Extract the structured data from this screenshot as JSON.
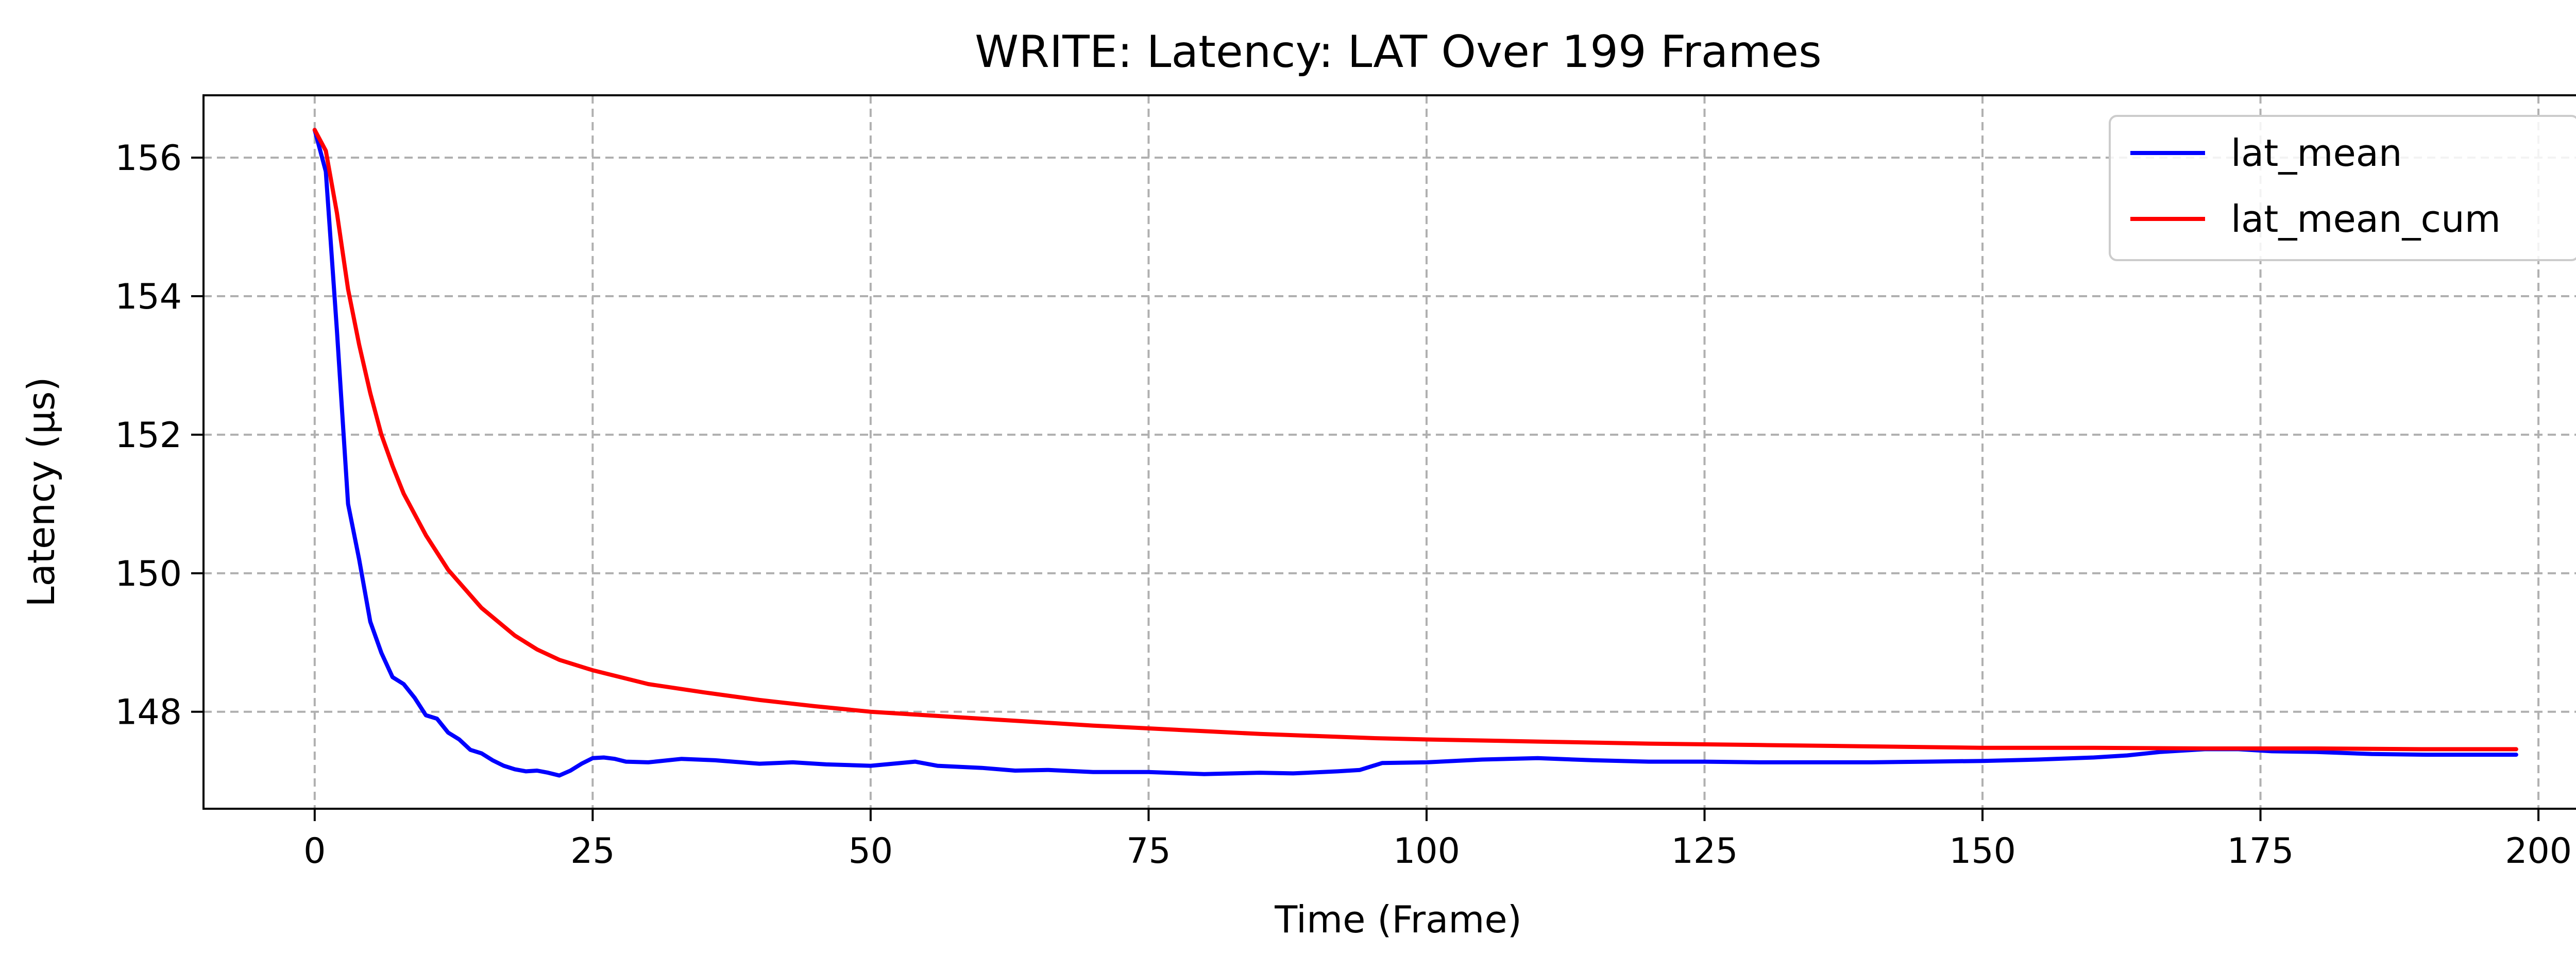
{
  "chart_data": {
    "type": "line",
    "title": "WRITE: Latency: LAT Over 199 Frames",
    "xlabel": "Time (Frame)",
    "ylabel": "Latency (µs)",
    "xlim": [
      -10,
      205
    ],
    "ylim": [
      146.6,
      156.9
    ],
    "grid": true,
    "legend_position": "top-right",
    "xticks": [
      0,
      25,
      50,
      75,
      100,
      125,
      150,
      175,
      200
    ],
    "yticks": [
      148,
      150,
      152,
      154,
      156
    ],
    "series": [
      {
        "name": "lat_mean",
        "color": "#0000ff",
        "points": [
          [
            0,
            156.4
          ],
          [
            1,
            155.8
          ],
          [
            2,
            153.5
          ],
          [
            3,
            151.0
          ],
          [
            4,
            150.2
          ],
          [
            5,
            149.3
          ],
          [
            6,
            148.85
          ],
          [
            7,
            148.5
          ],
          [
            8,
            148.4
          ],
          [
            9,
            148.2
          ],
          [
            10,
            147.95
          ],
          [
            11,
            147.9
          ],
          [
            12,
            147.7
          ],
          [
            13,
            147.6
          ],
          [
            14,
            147.45
          ],
          [
            15,
            147.4
          ],
          [
            16,
            147.3
          ],
          [
            17,
            147.22
          ],
          [
            18,
            147.17
          ],
          [
            19,
            147.14
          ],
          [
            20,
            147.15
          ],
          [
            21,
            147.12
          ],
          [
            22,
            147.08
          ],
          [
            23,
            147.15
          ],
          [
            24,
            147.25
          ],
          [
            25,
            147.33
          ],
          [
            26,
            147.34
          ],
          [
            27,
            147.32
          ],
          [
            28,
            147.28
          ],
          [
            30,
            147.27
          ],
          [
            33,
            147.32
          ],
          [
            36,
            147.3
          ],
          [
            40,
            147.25
          ],
          [
            43,
            147.27
          ],
          [
            46,
            147.24
          ],
          [
            50,
            147.22
          ],
          [
            54,
            147.28
          ],
          [
            56,
            147.22
          ],
          [
            60,
            147.19
          ],
          [
            63,
            147.15
          ],
          [
            66,
            147.16
          ],
          [
            70,
            147.13
          ],
          [
            75,
            147.13
          ],
          [
            80,
            147.1
          ],
          [
            85,
            147.12
          ],
          [
            88,
            147.11
          ],
          [
            92,
            147.14
          ],
          [
            94,
            147.16
          ],
          [
            96,
            147.26
          ],
          [
            100,
            147.27
          ],
          [
            105,
            147.31
          ],
          [
            110,
            147.33
          ],
          [
            115,
            147.3
          ],
          [
            120,
            147.28
          ],
          [
            125,
            147.28
          ],
          [
            130,
            147.27
          ],
          [
            135,
            147.27
          ],
          [
            140,
            147.27
          ],
          [
            145,
            147.28
          ],
          [
            150,
            147.29
          ],
          [
            155,
            147.31
          ],
          [
            160,
            147.34
          ],
          [
            163,
            147.37
          ],
          [
            166,
            147.42
          ],
          [
            170,
            147.46
          ],
          [
            173,
            147.46
          ],
          [
            176,
            147.43
          ],
          [
            180,
            147.42
          ],
          [
            185,
            147.39
          ],
          [
            190,
            147.38
          ],
          [
            195,
            147.38
          ],
          [
            198,
            147.38
          ]
        ]
      },
      {
        "name": "lat_mean_cum",
        "color": "#ff0000",
        "points": [
          [
            0,
            156.4
          ],
          [
            1,
            156.1
          ],
          [
            2,
            155.2
          ],
          [
            3,
            154.1
          ],
          [
            4,
            153.3
          ],
          [
            5,
            152.6
          ],
          [
            6,
            152.0
          ],
          [
            7,
            151.55
          ],
          [
            8,
            151.15
          ],
          [
            10,
            150.55
          ],
          [
            12,
            150.05
          ],
          [
            15,
            149.5
          ],
          [
            18,
            149.1
          ],
          [
            20,
            148.9
          ],
          [
            22,
            148.75
          ],
          [
            25,
            148.6
          ],
          [
            30,
            148.4
          ],
          [
            35,
            148.28
          ],
          [
            40,
            148.17
          ],
          [
            45,
            148.08
          ],
          [
            50,
            148.0
          ],
          [
            55,
            147.95
          ],
          [
            60,
            147.9
          ],
          [
            65,
            147.85
          ],
          [
            70,
            147.8
          ],
          [
            75,
            147.76
          ],
          [
            80,
            147.72
          ],
          [
            85,
            147.68
          ],
          [
            90,
            147.65
          ],
          [
            95,
            147.62
          ],
          [
            100,
            147.6
          ],
          [
            110,
            147.57
          ],
          [
            120,
            147.54
          ],
          [
            130,
            147.52
          ],
          [
            140,
            147.5
          ],
          [
            150,
            147.48
          ],
          [
            160,
            147.48
          ],
          [
            170,
            147.47
          ],
          [
            180,
            147.47
          ],
          [
            190,
            147.46
          ],
          [
            198,
            147.46
          ]
        ]
      }
    ]
  }
}
